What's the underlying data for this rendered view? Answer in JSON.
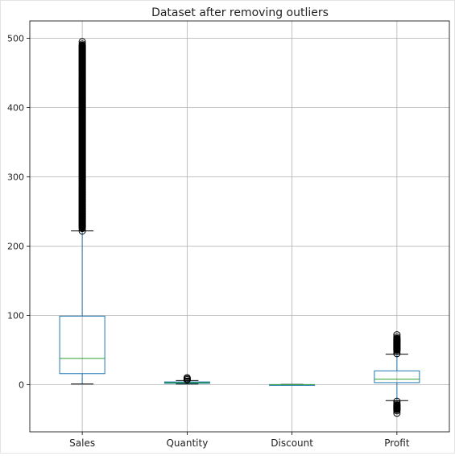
{
  "chart_data": {
    "type": "boxplot",
    "title": "Dataset after removing outliers",
    "xlabel": "",
    "ylabel": "",
    "ylim": [
      -68,
      525
    ],
    "yticks": [
      0,
      100,
      200,
      300,
      400,
      500
    ],
    "grid": true,
    "colors": {
      "box": "#1f77b4",
      "median": "#2ca02c",
      "whisker": "#1f77b4",
      "cap": "#000000",
      "grid": "#b0b0b0",
      "outlier": "#000000"
    },
    "categories": [
      "Sales",
      "Quantity",
      "Discount",
      "Profit"
    ],
    "boxes": [
      {
        "name": "Sales",
        "whislo": 1,
        "q1": 16,
        "med": 38,
        "q3": 99,
        "whishi": 222,
        "fliers_high": [
          222,
          495
        ],
        "fliers_low": null
      },
      {
        "name": "Quantity",
        "whislo": 1,
        "q1": 2,
        "med": 3,
        "q3": 4,
        "whishi": 6,
        "fliers_high": [
          7,
          10
        ],
        "fliers_low": null
      },
      {
        "name": "Discount",
        "whislo": 0,
        "q1": 0,
        "med": 0,
        "q3": 0.2,
        "whishi": 0.5,
        "fliers_high": null,
        "fliers_low": null
      },
      {
        "name": "Profit",
        "whislo": -23,
        "q1": 3,
        "med": 8,
        "q3": 20,
        "whishi": 44,
        "fliers_high": [
          45,
          72
        ],
        "fliers_low": [
          -41,
          -24
        ]
      }
    ]
  }
}
